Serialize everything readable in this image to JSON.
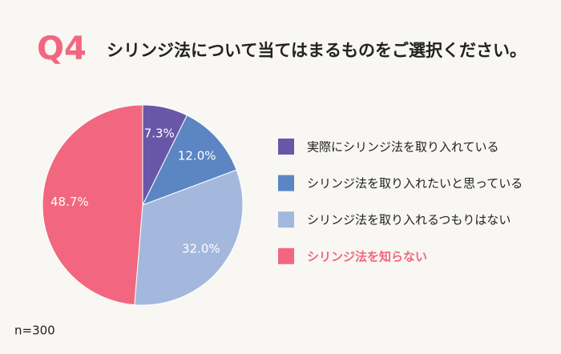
{
  "chart_data": {
    "type": "pie",
    "title": "Q4",
    "subtitle": "シリンジ法について当てはまるものをご選択ください。",
    "categories": [
      "実際にシリンジ法を取り入れている",
      "シリンジ法を取り入れたいと思っている",
      "シリンジ法を取り入れるつもりはない",
      "シリンジ法を知らない"
    ],
    "values": [
      7.3,
      12.0,
      32.0,
      48.7
    ],
    "value_labels": [
      "7.3%",
      "12.0%",
      "32.0%",
      "48.7%"
    ],
    "colors": [
      "#6857a8",
      "#5b86c3",
      "#a4b8dd",
      "#f2677f"
    ],
    "highlight": 3,
    "annotation": "n=300"
  }
}
